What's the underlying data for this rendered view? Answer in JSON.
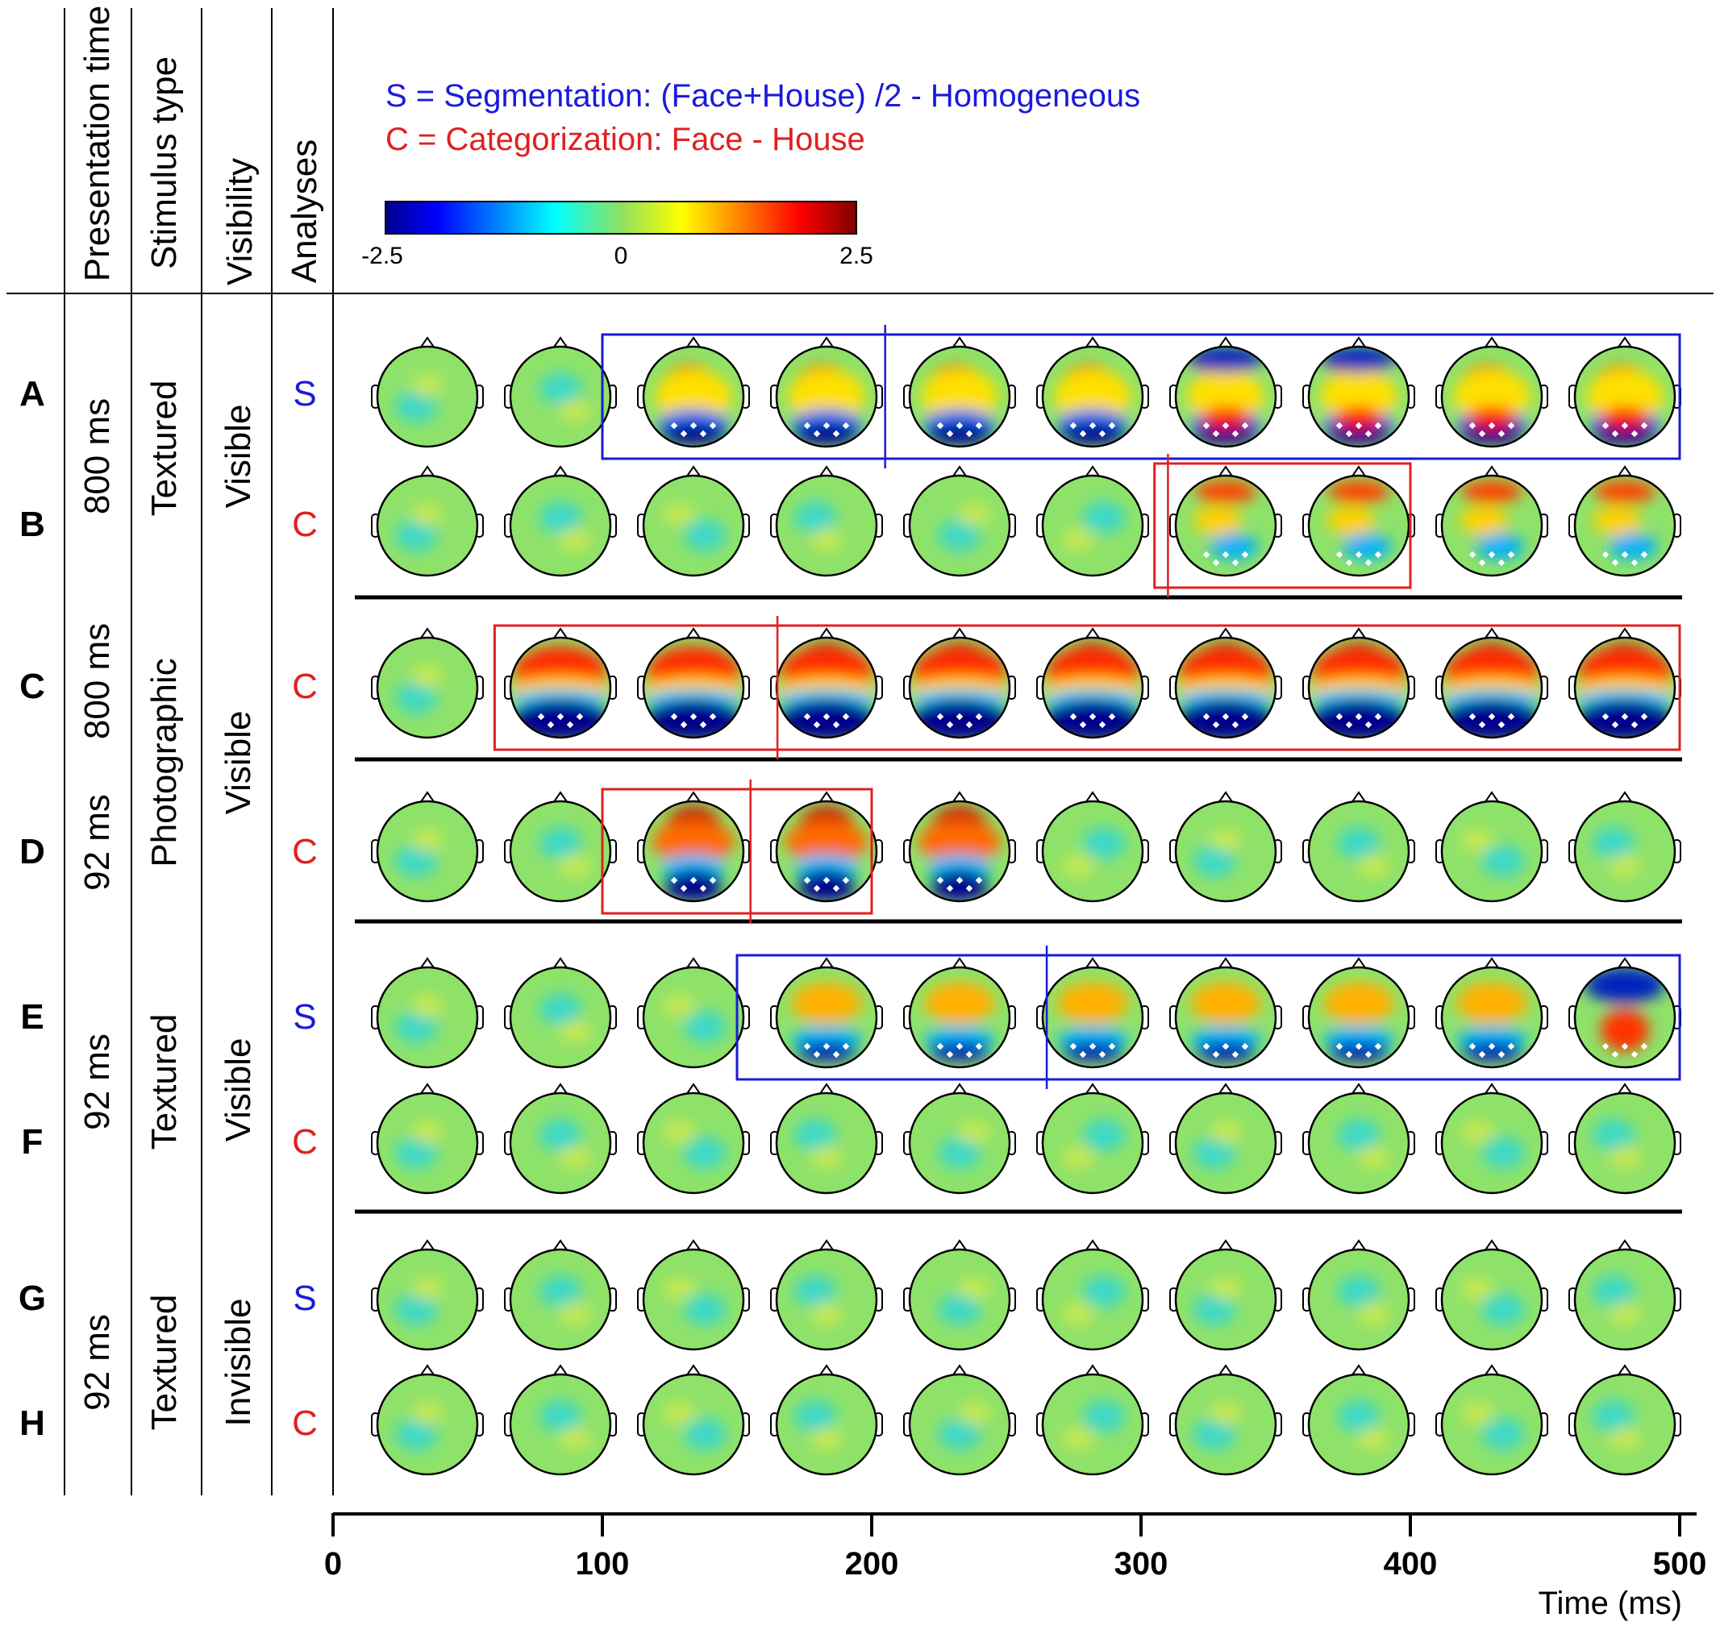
{
  "columns": {
    "presentation_time": "Presentation time",
    "stimulus_type": "Stimulus type",
    "visibility": "Visibility",
    "analyses": "Analyses"
  },
  "legend": {
    "s_line": "S = Segmentation: (Face+House) /2 - Homogeneous",
    "c_line": "C = Categorization: Face - House",
    "s_color": "#1a1adb",
    "c_color": "#e02020"
  },
  "colorbar": {
    "min_label": "-2.5",
    "mid_label": "0",
    "max_label": "2.5",
    "min": -2.5,
    "max": 2.5
  },
  "groups": [
    {
      "time": "800 ms",
      "stimulus": "Textured",
      "visibility": "Visible"
    },
    {
      "time_top": "800 ms",
      "time_bottom": "92 ms",
      "stimulus": "Photographic",
      "visibility": "Visible"
    },
    {
      "time": "92 ms",
      "stimulus": "Textured",
      "visibility": "Visible"
    },
    {
      "time": "92 ms",
      "stimulus": "Textured",
      "visibility": "Invisible"
    }
  ],
  "rows": [
    {
      "label": "A",
      "analysis": "S",
      "pattern": "seg_occipital",
      "onset": 2,
      "window": [
        100,
        500
      ],
      "cut_ms": 205
    },
    {
      "label": "B",
      "analysis": "C",
      "pattern": "cat_weak",
      "onset": 6,
      "window": [
        305,
        400
      ],
      "cut_ms": 310
    },
    {
      "label": "C",
      "analysis": "C",
      "pattern": "cat_strong",
      "onset": 1,
      "window": [
        60,
        500
      ],
      "cut_ms": 165
    },
    {
      "label": "D",
      "analysis": "C",
      "pattern": "cat_transient",
      "onset": 2,
      "offset": 4,
      "window": [
        100,
        200
      ],
      "cut_ms": 155
    },
    {
      "label": "E",
      "analysis": "S",
      "pattern": "seg_late",
      "onset": 3,
      "window": [
        150,
        500
      ],
      "cut_ms": 265
    },
    {
      "label": "F",
      "analysis": "C",
      "pattern": "null",
      "onset": 99
    },
    {
      "label": "G",
      "analysis": "S",
      "pattern": "null",
      "onset": 99
    },
    {
      "label": "H",
      "analysis": "C",
      "pattern": "null",
      "onset": 99
    }
  ],
  "time_axis": {
    "ticks": [
      "0",
      "100",
      "200",
      "300",
      "400",
      "500"
    ],
    "min": 0,
    "max": 500,
    "label": "Time (ms)"
  }
}
